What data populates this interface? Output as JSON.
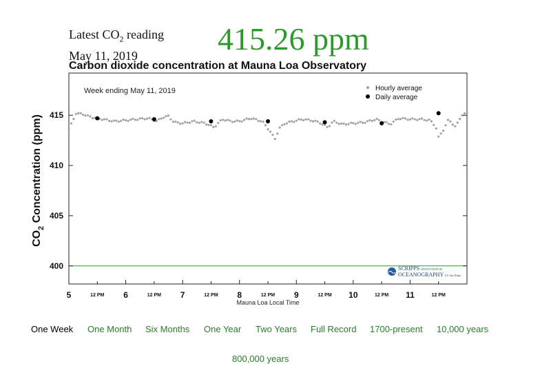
{
  "header": {
    "latest_label_prefix": "Latest CO",
    "latest_label_sub": "2",
    "latest_label_suffix": " reading",
    "latest_date": "May 11, 2019",
    "latest_value": "415.26 ppm",
    "value_color": "#2a9a2a"
  },
  "chart_data": {
    "type": "scatter",
    "title": "Carbon dioxide concentration at Mauna Loa Observatory",
    "annotation": "Week ending May 11, 2019",
    "ylabel_prefix": "CO",
    "ylabel_sub": "2",
    "ylabel_suffix": " Concentration (ppm)",
    "xlabel": "Mauna Loa Local Time",
    "ylim": [
      398.2,
      419.2
    ],
    "xlim": [
      5,
      12
    ],
    "y_ticks": [
      400,
      405,
      410,
      415
    ],
    "x_ticks": [
      {
        "x": 5,
        "label": "5"
      },
      {
        "x": 5.5,
        "label": "12 PM"
      },
      {
        "x": 6,
        "label": "6"
      },
      {
        "x": 6.5,
        "label": "12 PM"
      },
      {
        "x": 7,
        "label": "7"
      },
      {
        "x": 7.5,
        "label": "12 PM"
      },
      {
        "x": 8,
        "label": "8"
      },
      {
        "x": 8.5,
        "label": "12 PM"
      },
      {
        "x": 9,
        "label": "9"
      },
      {
        "x": 9.5,
        "label": "12 PM"
      },
      {
        "x": 10,
        "label": "10"
      },
      {
        "x": 10.5,
        "label": "12 PM"
      },
      {
        "x": 11,
        "label": "11"
      },
      {
        "x": 11.5,
        "label": "12 PM"
      }
    ],
    "legend": {
      "position": "top-right",
      "hourly_label": "Hourly average",
      "daily_label": "Daily average"
    },
    "reference_line": {
      "y": 400,
      "color": "#2a9a2a"
    },
    "daily": [
      {
        "x": 5.5,
        "y": 414.7
      },
      {
        "x": 6.5,
        "y": 414.6
      },
      {
        "x": 7.5,
        "y": 414.4
      },
      {
        "x": 8.5,
        "y": 414.4
      },
      {
        "x": 9.5,
        "y": 414.3
      },
      {
        "x": 10.5,
        "y": 414.2
      },
      {
        "x": 11.5,
        "y": 415.2
      }
    ],
    "hourly_knots": [
      [
        5.0,
        413.7
      ],
      [
        5.06,
        414.3
      ],
      [
        5.12,
        415.2
      ],
      [
        5.25,
        415.1
      ],
      [
        5.4,
        414.8
      ],
      [
        5.6,
        414.6
      ],
      [
        5.8,
        414.4
      ],
      [
        6.0,
        414.5
      ],
      [
        6.2,
        414.6
      ],
      [
        6.4,
        414.7
      ],
      [
        6.55,
        414.4
      ],
      [
        6.65,
        414.8
      ],
      [
        6.75,
        414.9
      ],
      [
        6.85,
        414.3
      ],
      [
        7.0,
        414.2
      ],
      [
        7.2,
        414.4
      ],
      [
        7.4,
        414.2
      ],
      [
        7.55,
        413.8
      ],
      [
        7.7,
        414.6
      ],
      [
        7.85,
        414.4
      ],
      [
        8.0,
        414.4
      ],
      [
        8.2,
        414.7
      ],
      [
        8.4,
        414.4
      ],
      [
        8.47,
        413.9
      ],
      [
        8.55,
        413.3
      ],
      [
        8.62,
        412.6
      ],
      [
        8.7,
        413.7
      ],
      [
        8.8,
        414.2
      ],
      [
        8.95,
        414.4
      ],
      [
        9.1,
        414.6
      ],
      [
        9.25,
        414.5
      ],
      [
        9.4,
        414.3
      ],
      [
        9.55,
        413.8
      ],
      [
        9.65,
        414.4
      ],
      [
        9.8,
        414.1
      ],
      [
        10.0,
        414.2
      ],
      [
        10.2,
        414.3
      ],
      [
        10.4,
        414.6
      ],
      [
        10.55,
        414.3
      ],
      [
        10.65,
        414.1
      ],
      [
        10.8,
        414.7
      ],
      [
        11.0,
        414.6
      ],
      [
        11.2,
        414.6
      ],
      [
        11.35,
        414.5
      ],
      [
        11.45,
        413.9
      ],
      [
        11.5,
        412.8
      ],
      [
        11.58,
        413.5
      ],
      [
        11.68,
        414.6
      ],
      [
        11.8,
        413.8
      ],
      [
        11.9,
        415.0
      ],
      [
        12.0,
        415.2
      ]
    ]
  },
  "logo": {
    "line1": "SCRIPPS",
    "line1_small": "INSTITUTION OF",
    "line2": "OCEANOGRAPHY",
    "line2_small": "UC San Diego",
    "color": "#1f3f75"
  },
  "nav": {
    "active": "One Week",
    "links": [
      "One Month",
      "Six Months",
      "One Year",
      "Two Years",
      "Full Record",
      "1700-present",
      "10,000 years"
    ],
    "last": "800,000 years",
    "color": "#2a7d2a"
  }
}
